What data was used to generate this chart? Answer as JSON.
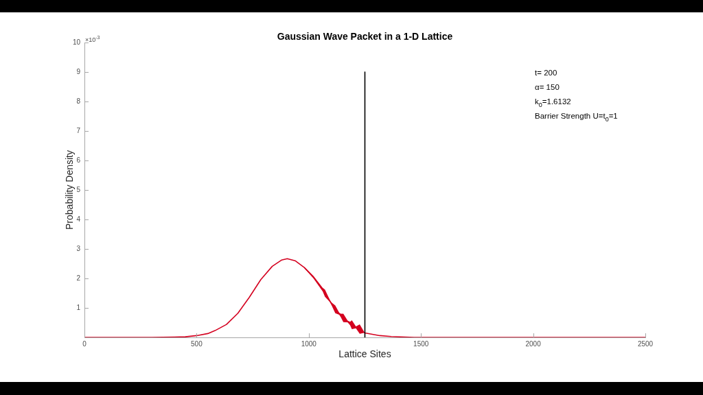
{
  "chart_data": {
    "type": "line",
    "title": "Gaussian Wave Packet in a 1-D Lattice",
    "xlabel": "Lattice Sites",
    "ylabel": "Probability Density",
    "annotations": [
      "×10$^{-3}$",
      "t= 200",
      "α= 150",
      "k$_{0}$=1.6132",
      "Barrier Strength U=t$_{0}$=1"
    ],
    "xlim": [
      0,
      2500
    ],
    "xticks": [
      0,
      500,
      1000,
      1500,
      2000,
      2500
    ],
    "ylim": [
      0,
      10
    ],
    "yticks": [
      1,
      2,
      3,
      4,
      5,
      6,
      7,
      8,
      9,
      10
    ],
    "series": [
      {
        "color": "#d4001f",
        "x": [
          0,
          300,
          400,
          450,
          500,
          550,
          582,
          633,
          684,
          735,
          786,
          837,
          878,
          904,
          939,
          980,
          1021,
          1062,
          1072,
          1095,
          1102,
          1118,
          1136,
          1143,
          1154,
          1173,
          1184,
          1192,
          1210,
          1227,
          1245,
          1250,
          1317,
          1368,
          1470,
          2500
        ],
        "values": [
          0,
          0,
          0.01,
          0.02,
          0.06,
          0.13,
          0.23,
          0.44,
          0.82,
          1.36,
          1.96,
          2.41,
          2.62,
          2.67,
          2.6,
          2.37,
          2.04,
          1.62,
          1.5,
          1.22,
          1.13,
          0.95,
          0.8,
          0.74,
          0.66,
          0.54,
          0.47,
          0.43,
          0.34,
          0.28,
          0.18,
          0.15,
          0.06,
          0.03,
          0,
          0
        ],
        "lower": [
          null,
          null,
          null,
          null,
          null,
          null,
          null,
          null,
          null,
          null,
          null,
          null,
          null,
          null,
          null,
          2.35,
          2.0,
          1.56,
          1.38,
          1.19,
          1.08,
          0.82,
          0.77,
          0.68,
          0.52,
          0.51,
          0.41,
          0.28,
          0.31,
          0.12,
          0.15,
          null,
          null,
          null,
          null,
          null
        ],
        "upper": [
          null,
          null,
          null,
          null,
          null,
          null,
          null,
          null,
          null,
          null,
          null,
          null,
          null,
          null,
          null,
          2.39,
          2.08,
          1.68,
          1.62,
          1.25,
          1.18,
          1.08,
          0.83,
          0.8,
          0.8,
          0.57,
          0.53,
          0.58,
          0.37,
          0.44,
          0.21,
          null,
          null,
          null,
          null,
          null
        ]
      },
      {
        "color": "#000000",
        "x": [
          1250,
          1250
        ],
        "values": [
          0,
          9
        ]
      }
    ]
  }
}
